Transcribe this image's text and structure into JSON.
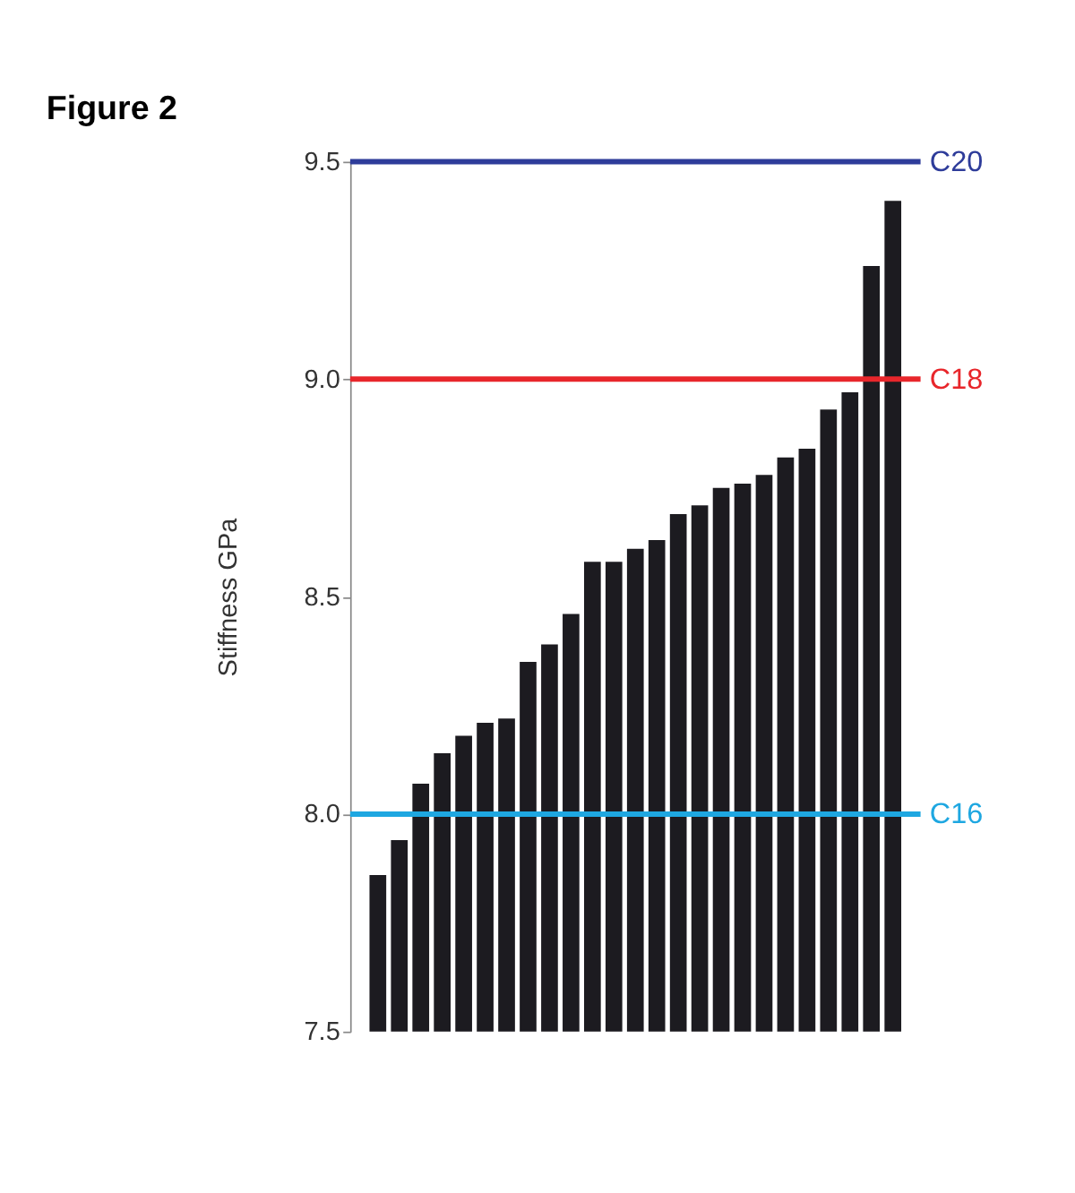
{
  "chart_data": {
    "type": "bar",
    "title": "Figure 2",
    "ylabel": "Stiffness GPa",
    "categories": [
      null,
      null,
      null,
      null,
      null,
      null,
      null,
      null,
      null,
      null,
      null,
      null,
      null,
      null,
      null,
      null,
      null,
      null,
      null,
      null,
      null,
      null,
      null,
      null,
      null
    ],
    "values": [
      7.86,
      7.94,
      8.07,
      8.14,
      8.18,
      8.21,
      8.22,
      8.35,
      8.39,
      8.46,
      8.58,
      8.58,
      8.61,
      8.63,
      8.69,
      8.71,
      8.75,
      8.76,
      8.78,
      8.82,
      8.84,
      8.93,
      8.97,
      9.26,
      9.41
    ],
    "color": "#1c1b20",
    "ylim": [
      7.5,
      9.5
    ],
    "yticks": [
      {
        "value": 7.5,
        "label": "7.5"
      },
      {
        "value": 8.0,
        "label": "8.0"
      },
      {
        "value": 8.5,
        "label": "8.5"
      },
      {
        "value": 9.0,
        "label": "9.0"
      },
      {
        "value": 9.5,
        "label": "9.5"
      }
    ],
    "ref_lines": [
      {
        "axis": "y",
        "value": 9.5,
        "label": "C20",
        "color": "#2e3c9a"
      },
      {
        "axis": "y",
        "value": 9.0,
        "label": "C18",
        "color": "#e8262b"
      },
      {
        "axis": "y",
        "value": 8.0,
        "label": "C16",
        "color": "#1ea7e1"
      }
    ],
    "tick_labels": "y",
    "grid": false
  }
}
